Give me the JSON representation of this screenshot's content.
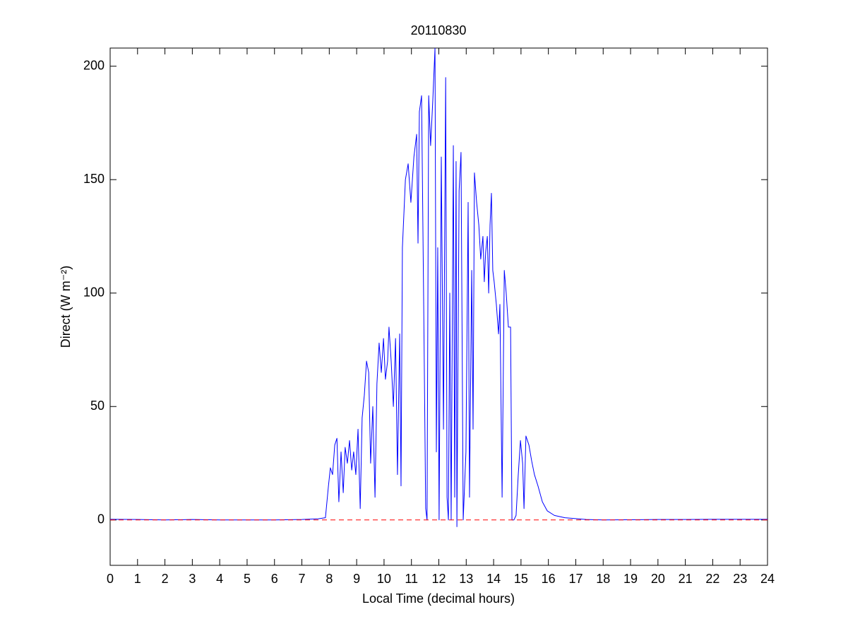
{
  "chart_data": {
    "type": "line",
    "title": "20110830",
    "x_label": "Local Time (decimal hours)",
    "y_label": "Direct (W m⁻²)",
    "xlim": [
      0,
      24
    ],
    "xticks": [
      0,
      1,
      2,
      3,
      4,
      5,
      6,
      7,
      8,
      9,
      10,
      11,
      12,
      13,
      14,
      15,
      16,
      17,
      18,
      19,
      20,
      21,
      22,
      23,
      24
    ],
    "ylim": [
      -20,
      208
    ],
    "yticks": [
      0,
      50,
      100,
      150,
      200
    ],
    "grid": false,
    "series": [
      {
        "color": "#0000ff",
        "style": "solid",
        "x": [
          0,
          1,
          2,
          3,
          4,
          5,
          6,
          7,
          7.6,
          7.86,
          7.97,
          8.04,
          8.12,
          8.2,
          8.28,
          8.35,
          8.43,
          8.51,
          8.58,
          8.66,
          8.74,
          8.82,
          8.89,
          8.97,
          9.05,
          9.13,
          9.2,
          9.28,
          9.36,
          9.44,
          9.51,
          9.59,
          9.67,
          9.74,
          9.82,
          9.9,
          9.98,
          10.05,
          10.13,
          10.18,
          10.26,
          10.34,
          10.42,
          10.49,
          10.57,
          10.62,
          10.67,
          10.78,
          10.88,
          10.98,
          11.09,
          11.19,
          11.24,
          11.29,
          11.37,
          11.45,
          11.52,
          11.57,
          11.63,
          11.7,
          11.78,
          11.86,
          11.91,
          11.96,
          12.01,
          12.09,
          12.17,
          12.25,
          12.3,
          12.35,
          12.4,
          12.45,
          12.53,
          12.58,
          12.63,
          12.66,
          12.74,
          12.81,
          12.89,
          12.99,
          13.07,
          13.12,
          13.2,
          13.25,
          13.3,
          13.38,
          13.46,
          13.53,
          13.61,
          13.66,
          13.71,
          13.77,
          13.82,
          13.87,
          13.92,
          13.97,
          14.02,
          14.1,
          14.18,
          14.23,
          14.31,
          14.39,
          14.46,
          14.54,
          14.62,
          14.67,
          14.74,
          14.82,
          14.9,
          14.98,
          15.06,
          15.11,
          15.18,
          15.29,
          15.39,
          15.49,
          15.62,
          15.78,
          15.96,
          16.22,
          16.6,
          17.38,
          18,
          19,
          20,
          21,
          22,
          23,
          24
        ],
        "values": [
          0.3,
          0.2,
          0,
          0.2,
          0,
          0,
          0,
          0.2,
          0.5,
          1,
          15,
          23,
          20,
          33,
          36,
          8,
          30,
          12,
          32,
          25,
          35,
          22,
          30,
          20,
          40,
          5,
          45,
          55,
          70,
          65,
          25,
          50,
          10,
          60,
          78,
          65,
          80,
          62,
          70,
          85,
          70,
          50,
          80,
          20,
          82,
          15,
          120,
          150,
          157,
          140,
          160,
          170,
          122,
          180,
          187,
          92,
          5,
          0,
          187,
          165,
          185,
          208,
          30,
          120,
          0,
          160,
          40,
          195,
          10,
          0,
          100,
          0,
          165,
          10,
          158,
          -3,
          145,
          162,
          0,
          30,
          140,
          10,
          110,
          40,
          153,
          140,
          130,
          115,
          125,
          105,
          118,
          125,
          100,
          130,
          144,
          110,
          105,
          95,
          82,
          95,
          10,
          110,
          100,
          85,
          85,
          0,
          0,
          2,
          20,
          35,
          25,
          5,
          37,
          33,
          26,
          20,
          15,
          8,
          4,
          2,
          1,
          0.2,
          0,
          0.1,
          0.2,
          0.2,
          0.3,
          0.3,
          0.3
        ]
      },
      {
        "color": "#ff0000",
        "style": "dashed",
        "x": [
          0,
          24
        ],
        "values": [
          0,
          0
        ]
      }
    ]
  }
}
